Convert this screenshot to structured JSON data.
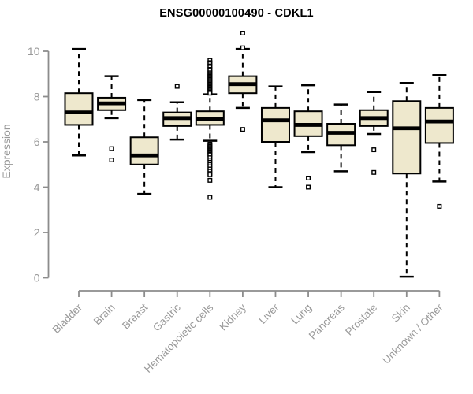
{
  "chart_data": {
    "type": "boxplot",
    "title": "ENSG00000100490 - CDKL1",
    "ylabel": "Expression",
    "xlabel": "",
    "ylim": [
      0,
      10
    ],
    "yticks": [
      0,
      2,
      4,
      6,
      8,
      10
    ],
    "grid": false,
    "legend": "none",
    "colors": {
      "box_fill": "#EEE8CD",
      "box_border": "#000000",
      "median": "#000000",
      "whisker": "#000000",
      "outlier_stroke": "#000000",
      "outlier_fill": "#ffffff",
      "axis": "#8c8c8c",
      "tick_text": "#999999",
      "title_text": "#000000"
    },
    "categories": [
      "Bladder",
      "Brain",
      "Breast",
      "Gastric",
      "Hematopoietic cells",
      "Kidney",
      "Liver",
      "Lung",
      "Pancreas",
      "Prostate",
      "Skin",
      "Unknown / Other"
    ],
    "series": [
      {
        "category": "Bladder",
        "low": 5.4,
        "q1": 6.75,
        "median": 7.3,
        "q3": 8.15,
        "high": 10.1,
        "outliers": []
      },
      {
        "category": "Brain",
        "low": 7.05,
        "q1": 7.4,
        "median": 7.7,
        "q3": 7.95,
        "high": 8.9,
        "outliers": [
          5.7,
          5.2
        ]
      },
      {
        "category": "Breast",
        "low": 3.7,
        "q1": 5.0,
        "median": 5.4,
        "q3": 6.2,
        "high": 7.85,
        "outliers": []
      },
      {
        "category": "Gastric",
        "low": 6.1,
        "q1": 6.7,
        "median": 7.05,
        "q3": 7.3,
        "high": 7.75,
        "outliers": [
          8.45
        ]
      },
      {
        "category": "Hematopoietic cells",
        "low": 6.05,
        "q1": 6.75,
        "median": 7.0,
        "q3": 7.35,
        "high": 8.1,
        "outliers": [
          9.6,
          9.5,
          9.45,
          9.35,
          9.3,
          9.2,
          9.15,
          9.05,
          9.0,
          8.95,
          8.9,
          8.85,
          8.8,
          8.75,
          8.7,
          8.65,
          8.6,
          8.55,
          8.5,
          8.45,
          8.4,
          8.35,
          8.3,
          8.25,
          8.2,
          8.15,
          5.9,
          5.85,
          5.8,
          5.75,
          5.7,
          5.65,
          5.6,
          5.55,
          5.5,
          5.45,
          5.4,
          5.3,
          5.2,
          5.1,
          5.0,
          4.9,
          4.8,
          4.7,
          4.6,
          4.55,
          4.3,
          3.55
        ]
      },
      {
        "category": "Kidney",
        "low": 7.5,
        "q1": 8.15,
        "median": 8.55,
        "q3": 8.9,
        "high": 10.1,
        "outliers": [
          10.8,
          10.15,
          6.55
        ]
      },
      {
        "category": "Liver",
        "low": 4.0,
        "q1": 6.0,
        "median": 6.95,
        "q3": 7.5,
        "high": 8.45,
        "outliers": []
      },
      {
        "category": "Lung",
        "low": 5.55,
        "q1": 6.25,
        "median": 6.75,
        "q3": 7.35,
        "high": 8.5,
        "outliers": [
          4.4,
          4.0
        ]
      },
      {
        "category": "Pancreas",
        "low": 4.7,
        "q1": 5.85,
        "median": 6.4,
        "q3": 6.8,
        "high": 7.65,
        "outliers": []
      },
      {
        "category": "Prostate",
        "low": 6.35,
        "q1": 6.7,
        "median": 7.05,
        "q3": 7.4,
        "high": 8.2,
        "outliers": [
          5.65,
          4.65
        ]
      },
      {
        "category": "Skin",
        "low": 0.05,
        "q1": 4.6,
        "median": 6.6,
        "q3": 7.8,
        "high": 8.6,
        "outliers": []
      },
      {
        "category": "Unknown / Other",
        "low": 4.25,
        "q1": 5.95,
        "median": 6.9,
        "q3": 7.5,
        "high": 8.95,
        "outliers": [
          3.15
        ]
      }
    ]
  }
}
